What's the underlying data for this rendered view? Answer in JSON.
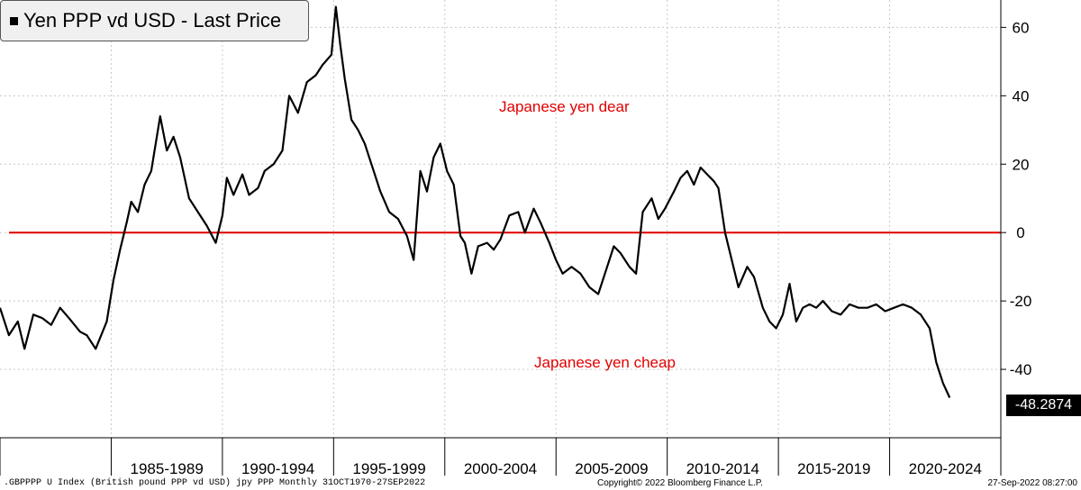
{
  "legend": {
    "label": "Yen PPP vd USD - Last Price"
  },
  "annotations": {
    "dear": "Japanese yen dear",
    "cheap": "Japanese yen cheap"
  },
  "last_value": "-48.2874",
  "footer": {
    "left": ".GBPPPP U Index (British pound PPP vd USD) jpy PPP  Monthly 31OCT1970-27SEP2022",
    "copyright": "Copyright© 2022 Bloomberg Finance L.P.",
    "timestamp": "27-Sep-2022 08:27:00"
  },
  "colors": {
    "line": "#000000",
    "zero_line": "#e00000",
    "annotation": "#e00000",
    "grid": "#c8c8c8"
  },
  "chart_data": {
    "type": "line",
    "title": "Yen PPP vd USD - Last Price",
    "xlabel": "",
    "ylabel": "",
    "x_categories": [
      "1985-1989",
      "1990-1994",
      "1995-1999",
      "2000-2004",
      "2005-2009",
      "2010-2014",
      "2015-2019",
      "2020-2024"
    ],
    "ylim": [
      -60,
      68
    ],
    "yticks": [
      60,
      40,
      20,
      0,
      -20,
      -40
    ],
    "grid": true,
    "reference_line": 0,
    "series": [
      {
        "name": "Yen PPP vd USD - Last Price",
        "x": [
          1980.0,
          1980.4,
          1980.8,
          1981.1,
          1981.5,
          1981.9,
          1982.3,
          1982.7,
          1983.1,
          1983.6,
          1983.9,
          1984.3,
          1984.8,
          1985.1,
          1985.4,
          1985.7,
          1985.9,
          1986.2,
          1986.5,
          1986.8,
          1987.2,
          1987.5,
          1987.8,
          1988.1,
          1988.5,
          1988.9,
          1989.3,
          1989.7,
          1990.0,
          1990.2,
          1990.5,
          1990.9,
          1991.2,
          1991.6,
          1991.9,
          1992.3,
          1992.7,
          1993.0,
          1993.4,
          1993.8,
          1994.2,
          1994.5,
          1994.9,
          1995.1,
          1995.3,
          1995.5,
          1995.8,
          1996.1,
          1996.4,
          1996.8,
          1997.1,
          1997.5,
          1997.9,
          1998.3,
          1998.6,
          1998.9,
          1999.2,
          1999.5,
          1999.8,
          2000.1,
          2000.4,
          2000.7,
          2000.9,
          2001.2,
          2001.5,
          2001.9,
          2002.2,
          2002.5,
          2002.9,
          2003.3,
          2003.6,
          2004.0,
          2004.3,
          2004.7,
          2005.0,
          2005.3,
          2005.7,
          2006.1,
          2006.5,
          2006.9,
          2007.3,
          2007.6,
          2007.9,
          2008.3,
          2008.6,
          2008.9,
          2009.3,
          2009.6,
          2009.9,
          2010.3,
          2010.6,
          2010.9,
          2011.2,
          2011.5,
          2011.8,
          2012.1,
          2012.3,
          2012.6,
          2012.9,
          2013.2,
          2013.6,
          2013.9,
          2014.3,
          2014.6,
          2014.9,
          2015.2,
          2015.5,
          2015.8,
          2016.1,
          2016.4,
          2016.7,
          2017.0,
          2017.4,
          2017.8,
          2018.2,
          2018.6,
          2019.0,
          2019.4,
          2019.8,
          2020.2,
          2020.6,
          2021.0,
          2021.4,
          2021.8,
          2022.1,
          2022.4,
          2022.7
        ],
        "y": [
          -22,
          -30,
          -26,
          -34,
          -24,
          -25,
          -27,
          -22,
          -25,
          -29,
          -30,
          -34,
          -26,
          -14,
          -5,
          3,
          9,
          6,
          14,
          18,
          34,
          24,
          28,
          22,
          10,
          6,
          2,
          -3,
          5,
          16,
          11,
          17,
          11,
          13,
          18,
          20,
          24,
          40,
          35,
          44,
          46,
          49,
          52,
          66,
          55,
          45,
          33,
          30,
          26,
          18,
          12,
          6,
          4,
          -1,
          -8,
          18,
          12,
          22,
          26,
          18,
          14,
          -1,
          -3,
          -12,
          -4,
          -3,
          -5,
          -2,
          5,
          6,
          0,
          7,
          3,
          -3,
          -8,
          -12,
          -10,
          -12,
          -16,
          -18,
          -10,
          -4,
          -6,
          -10,
          -12,
          6,
          10,
          4,
          7,
          12,
          16,
          18,
          14,
          19,
          17,
          15,
          13,
          0,
          -8,
          -16,
          -10,
          -13,
          -22,
          -26,
          -28,
          -24,
          -15,
          -26,
          -22,
          -21,
          -22,
          -20,
          -23,
          -24,
          -21,
          -22,
          -22,
          -21,
          -23,
          -22,
          -21,
          -22,
          -24,
          -28,
          -38,
          -44,
          -48.2874
        ]
      }
    ]
  }
}
